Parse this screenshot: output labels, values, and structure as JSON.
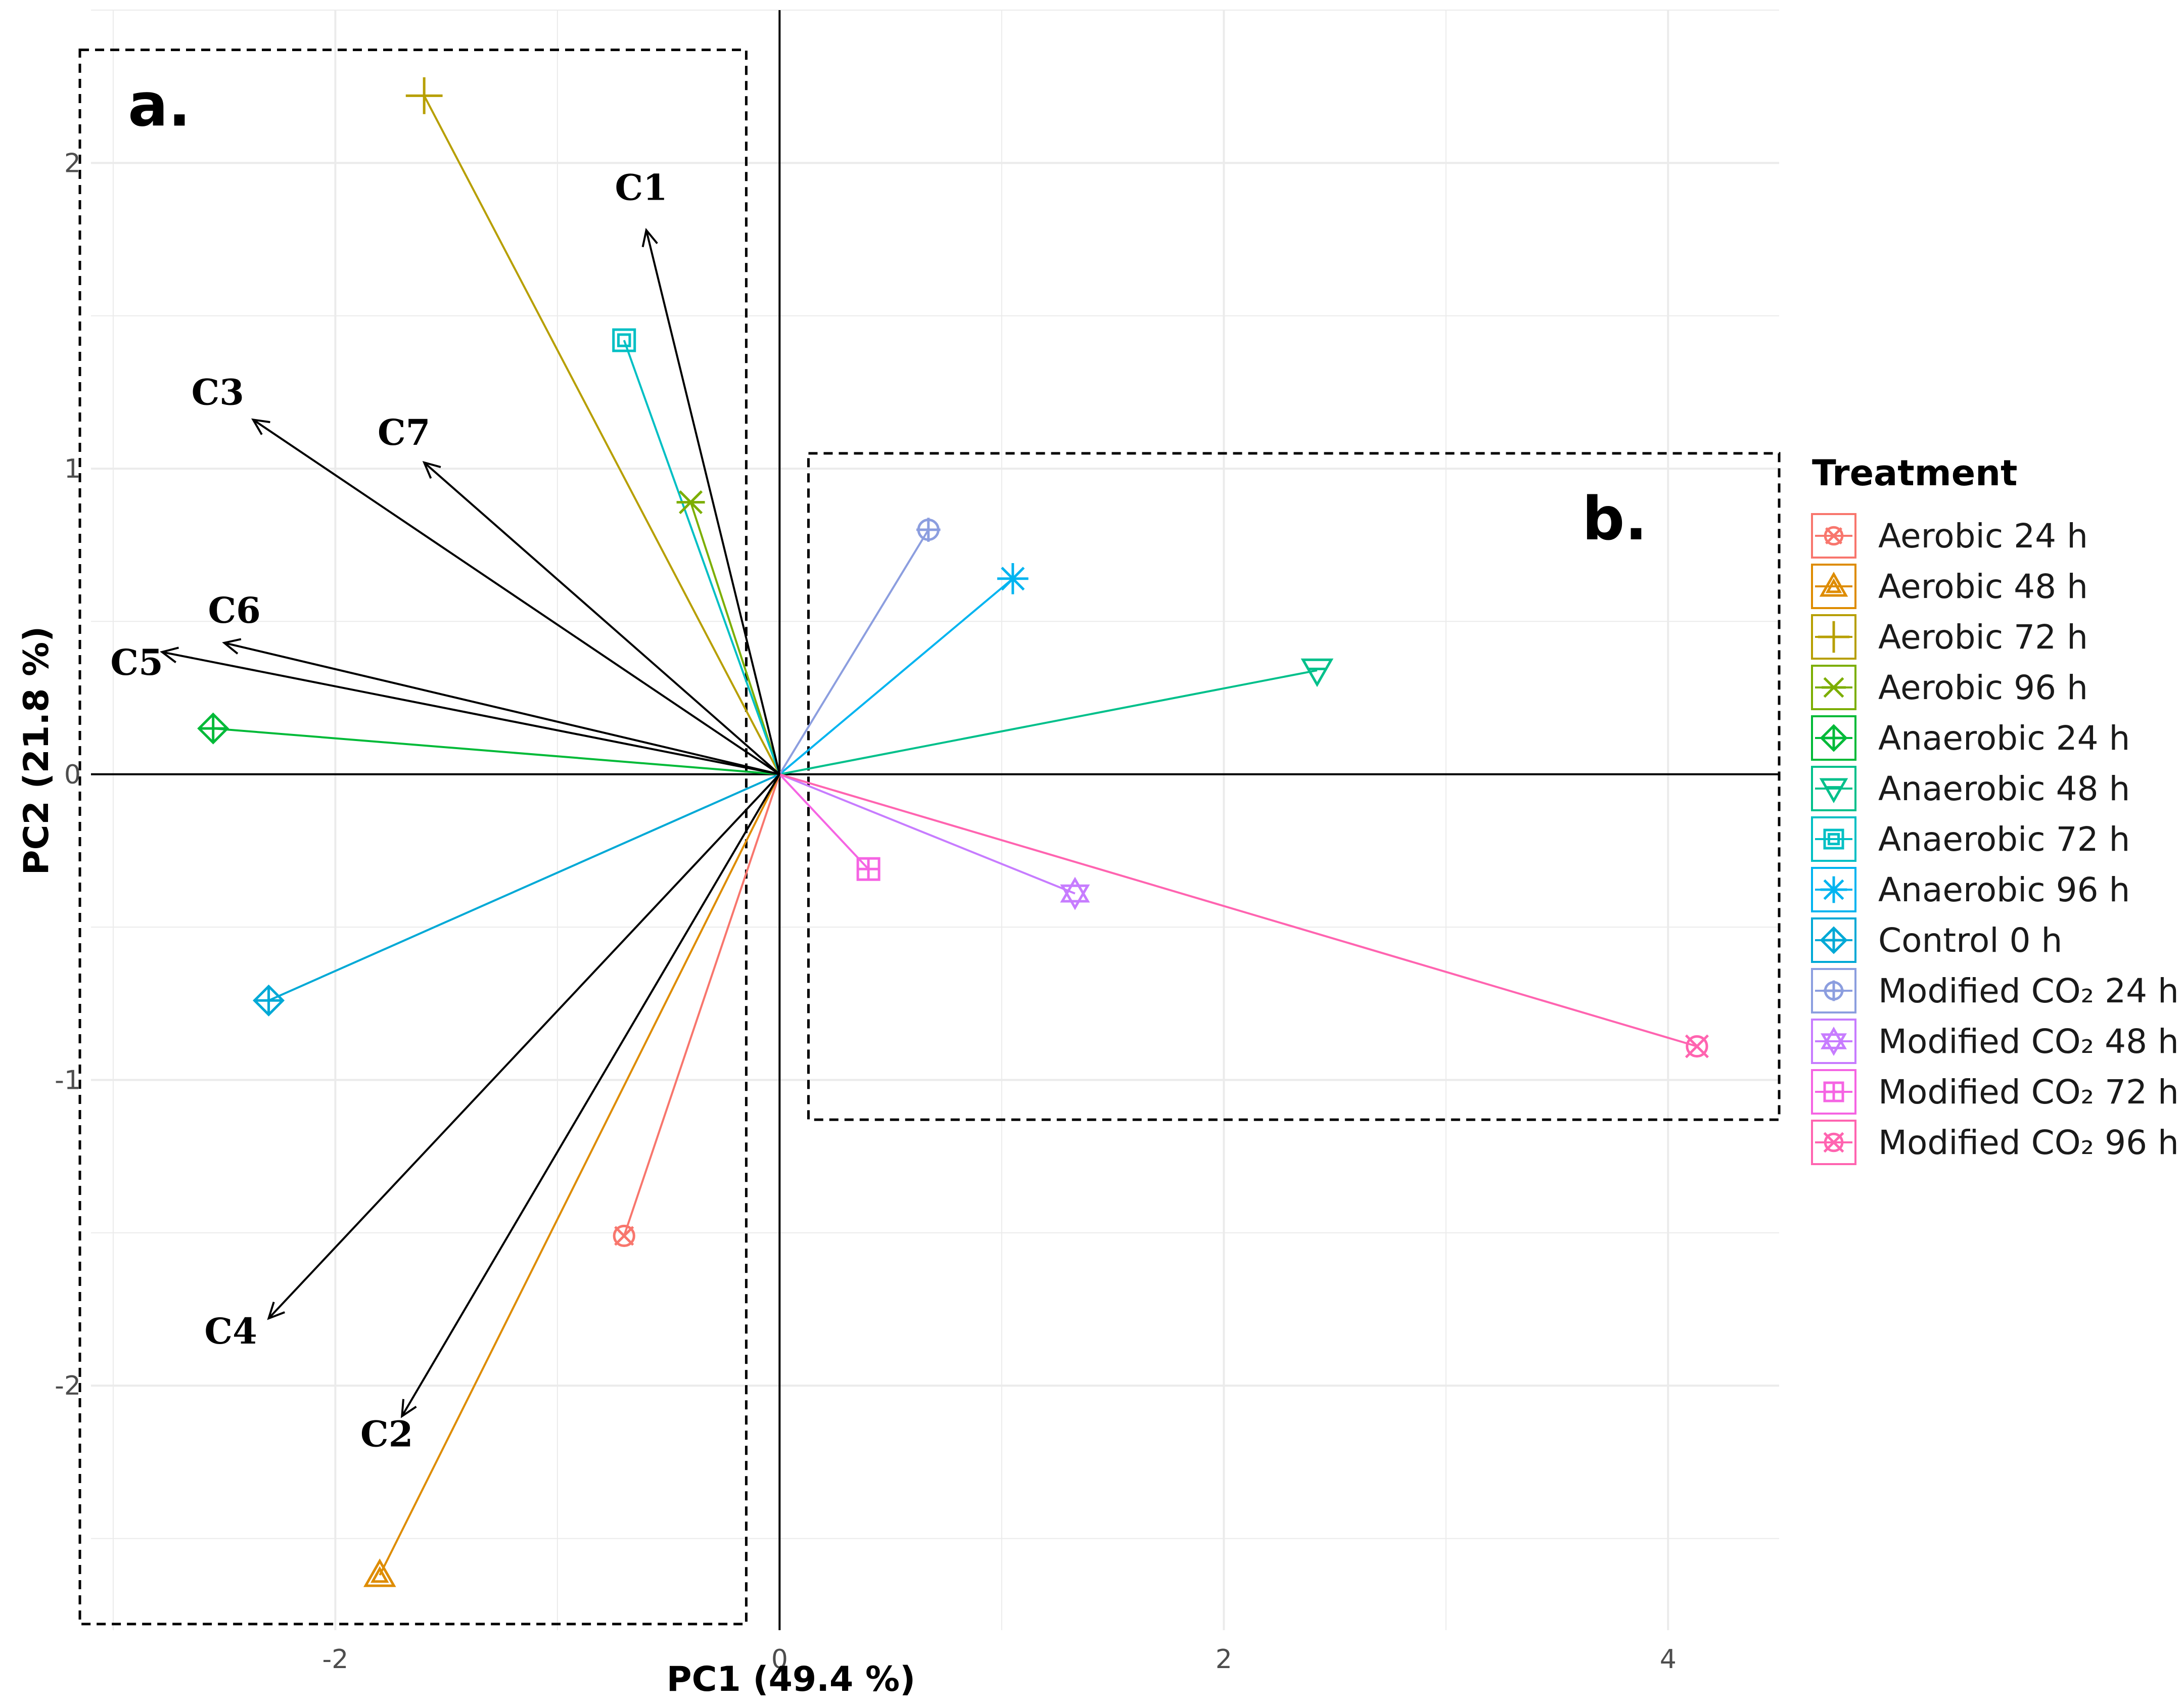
{
  "chart_data": {
    "type": "scatter",
    "subtype": "pca-biplot",
    "xlabel": "PC1 (49.4 %)",
    "ylabel": "PC2 (21.8 %)",
    "xlim": [
      -3.1,
      4.5
    ],
    "ylim": [
      -2.8,
      2.5
    ],
    "x_ticks": [
      -2,
      0,
      2,
      4
    ],
    "y_ticks": [
      -2,
      -1,
      0,
      1,
      2
    ],
    "grid": true,
    "legend_position": "right",
    "legend_title": "Treatment",
    "series": [
      {
        "name": "Aerobic 24 h",
        "color": "#F8766D",
        "marker": "circle-cross",
        "x": -0.7,
        "y": -1.51
      },
      {
        "name": "Aerobic 48 h",
        "color": "#DE8C00",
        "marker": "triangle-up",
        "x": -1.8,
        "y": -2.62
      },
      {
        "name": "Aerobic 72 h",
        "color": "#B79F00",
        "marker": "plus",
        "x": -1.6,
        "y": 2.22
      },
      {
        "name": "Aerobic 96 h",
        "color": "#7CAE00",
        "marker": "x-cross",
        "x": -0.4,
        "y": 0.89
      },
      {
        "name": "Anaerobic 24 h",
        "color": "#00BA38",
        "marker": "diamond-plus",
        "x": -2.55,
        "y": 0.15
      },
      {
        "name": "Anaerobic 48 h",
        "color": "#00C08B",
        "marker": "triangle-down",
        "x": 2.42,
        "y": 0.34
      },
      {
        "name": "Anaerobic 72 h",
        "color": "#00BFC4",
        "marker": "square-cross",
        "x": -0.7,
        "y": 1.42
      },
      {
        "name": "Anaerobic 96 h",
        "color": "#00B4F0",
        "marker": "asterisk",
        "x": 1.05,
        "y": 0.64
      },
      {
        "name": "Control 0 h",
        "color": "#00A9D6",
        "marker": "diamond-plus",
        "x": -2.3,
        "y": -0.74
      },
      {
        "name": "Modified CO₂ 24 h",
        "color": "#8C9EDF",
        "marker": "circle-plus",
        "x": 0.67,
        "y": 0.8
      },
      {
        "name": "Modified CO₂ 48 h",
        "color": "#C77CFF",
        "marker": "star",
        "x": 1.33,
        "y": -0.39
      },
      {
        "name": "Modified CO₂ 72 h",
        "color": "#F564E3",
        "marker": "square-plus",
        "x": 0.4,
        "y": -0.31
      },
      {
        "name": "Modified CO₂ 96 h",
        "color": "#FF64B0",
        "marker": "circle-x",
        "x": 4.13,
        "y": -0.89
      }
    ],
    "vectors": [
      {
        "label": "C1",
        "x": -0.6,
        "y": 1.78
      },
      {
        "label": "C2",
        "x": -1.7,
        "y": -2.1
      },
      {
        "label": "C3",
        "x": -2.37,
        "y": 1.16
      },
      {
        "label": "C4",
        "x": -2.3,
        "y": -1.78
      },
      {
        "label": "C5",
        "x": -2.78,
        "y": 0.4
      },
      {
        "label": "C6",
        "x": -2.5,
        "y": 0.43
      },
      {
        "label": "C7",
        "x": -1.6,
        "y": 1.02
      }
    ],
    "regions": [
      {
        "label": "a.",
        "x_range": [
          -3.15,
          -0.15
        ],
        "y_range": [
          -2.78,
          2.37
        ]
      },
      {
        "label": "b.",
        "x_range": [
          0.13,
          4.5
        ],
        "y_range": [
          -1.13,
          1.05
        ]
      }
    ]
  }
}
